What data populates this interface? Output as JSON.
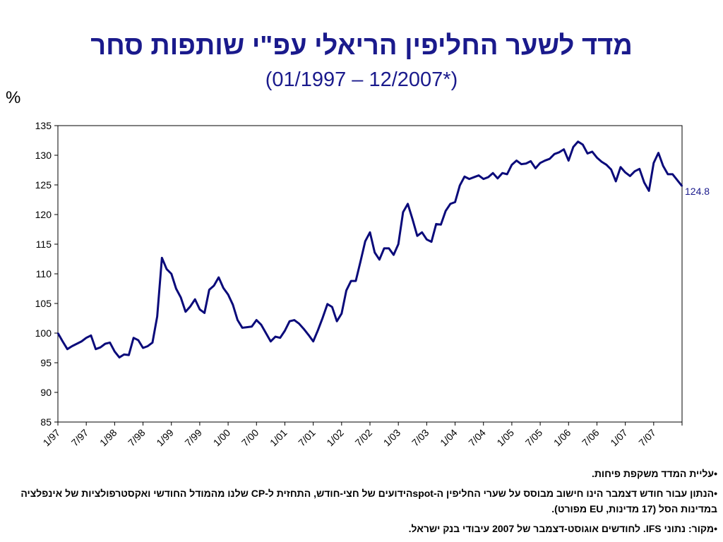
{
  "page": {
    "title": "מדד לשער החליפין הריאלי עפ\"י שותפות סחר",
    "subtitle": "(01/1997 – 12/2007*)",
    "unit_label": "%",
    "notes": [
      "•עליית המדד משקפת פיחות.",
      "•הנתון עבור חודש דצמבר הינו חישוב מבוסס על שערי החליפין ה-spotהידועים של חצי-חודש, התחזית ל-CP שלנו מהמודל החודשי ואקסטרפולציות של אינפלציה במדינות הסל (17 מדינות, EU מפורט).",
      "•מקור: נתוני IFS. לחודשים אוגוסט-דצמבר של 2007 עיבודי בנק ישראל."
    ]
  },
  "chart_data": {
    "type": "line",
    "ylim": [
      85,
      135
    ],
    "yticks": [
      85,
      90,
      95,
      100,
      105,
      110,
      115,
      120,
      125,
      130,
      135
    ],
    "xtick_labels": [
      "1/97",
      "7/97",
      "1/98",
      "7/98",
      "1/99",
      "7/99",
      "1/00",
      "7/00",
      "1/01",
      "7/01",
      "1/02",
      "7/02",
      "1/03",
      "7/03",
      "1/04",
      "7/04",
      "1/05",
      "7/05",
      "1/06",
      "7/06",
      "1/07",
      "7/07"
    ],
    "end_label": "124.8",
    "series_color": "#0a0a7a",
    "values": [
      100.0,
      98.6,
      97.3,
      97.8,
      98.2,
      98.6,
      99.2,
      99.6,
      97.3,
      97.6,
      98.2,
      98.4,
      96.9,
      95.9,
      96.4,
      96.3,
      99.2,
      98.8,
      97.5,
      97.8,
      98.4,
      102.8,
      112.7,
      110.8,
      110.0,
      107.5,
      106.0,
      103.6,
      104.5,
      105.7,
      104.0,
      103.4,
      107.3,
      108.0,
      109.4,
      107.6,
      106.5,
      104.8,
      102.2,
      100.9,
      101.0,
      101.1,
      102.2,
      101.4,
      100.0,
      98.6,
      99.4,
      99.2,
      100.4,
      102.0,
      102.2,
      101.6,
      100.7,
      99.7,
      98.6,
      100.5,
      102.6,
      104.9,
      104.4,
      102.0,
      103.3,
      107.2,
      108.8,
      108.8,
      112.1,
      115.5,
      117.0,
      113.6,
      112.4,
      114.3,
      114.3,
      113.2,
      115.0,
      120.4,
      121.8,
      119.2,
      116.4,
      117.0,
      115.8,
      115.4,
      118.4,
      118.3,
      120.6,
      121.8,
      122.1,
      124.9,
      126.4,
      126.0,
      126.3,
      126.6,
      126.0,
      126.3,
      127.0,
      126.1,
      127.0,
      126.8,
      128.4,
      129.1,
      128.5,
      128.6,
      129.0,
      127.8,
      128.7,
      129.1,
      129.4,
      130.2,
      130.5,
      131.0,
      129.1,
      131.4,
      132.3,
      131.8,
      130.3,
      130.6,
      129.6,
      128.9,
      128.4,
      127.6,
      125.6,
      128.0,
      127.1,
      126.5,
      127.3,
      127.7,
      125.4,
      124.0,
      128.7,
      130.4,
      128.2,
      126.8,
      126.8,
      125.8,
      124.8
    ]
  }
}
